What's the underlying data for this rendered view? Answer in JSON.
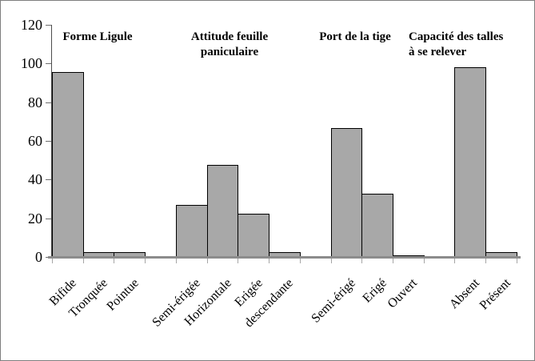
{
  "chart_data": {
    "type": "bar",
    "title": "",
    "xlabel": "",
    "ylabel": "",
    "ylim": [
      0,
      120
    ],
    "yticks": [
      0,
      20,
      40,
      60,
      80,
      100,
      120
    ],
    "grid": false,
    "legend": false,
    "bar_color": "#a8a8a8",
    "bar_border_color": "#000000",
    "groups": [
      {
        "title_lines": [
          "Forme Ligule"
        ],
        "categories": [
          "Bifide",
          "Tronquée",
          "Pointue"
        ],
        "values": [
          95.5,
          2.5,
          2.5
        ]
      },
      {
        "title_lines": [
          "Attitude feuille",
          "paniculaire"
        ],
        "categories": [
          "Semi-érigée",
          "Horizontale",
          "Erigée",
          "descendante"
        ],
        "values": [
          27,
          47.5,
          22.5,
          2.5
        ]
      },
      {
        "title_lines": [
          "Port de la tige"
        ],
        "categories": [
          "Semi-érigé",
          "Erigé",
          "Ouvert"
        ],
        "values": [
          66.5,
          32.5,
          1
        ]
      },
      {
        "title_lines": [
          "Capacité des talles",
          "à se relever"
        ],
        "categories": [
          "Absent",
          "Présent"
        ],
        "values": [
          98,
          2.5
        ]
      }
    ]
  }
}
